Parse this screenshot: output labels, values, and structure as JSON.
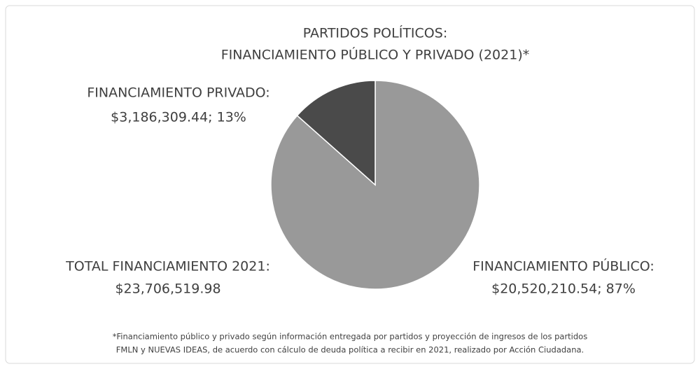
{
  "chart_data": {
    "type": "pie",
    "title": [
      "PARTIDOS POLÍTICOS:",
      "FINANCIAMIENTO PÚBLICO Y PRIVADO (2021)*"
    ],
    "categories": [
      "FINANCIAMIENTO PÚBLICO:",
      "FINANCIAMIENTO PRIVADO:"
    ],
    "values": [
      20520210.54,
      3186309.44
    ],
    "value_labels": [
      "$20,520,210.54; 87%",
      "$3,186,309.44; 13%"
    ],
    "colors": [
      "#999999",
      "#4a4a4a"
    ],
    "total": {
      "label": "TOTAL FINANCIAMIENTO 2021:",
      "value": "$23,706,519.98"
    },
    "footnote": [
      "*Financiamiento público y privado según información entregada por partidos y proyección de ingresos de los partidos",
      "FMLN y NUEVAS IDEAS, de acuerdo con cálculo de deuda política a recibir en 2021, realizado por Acción Ciudadana."
    ]
  }
}
